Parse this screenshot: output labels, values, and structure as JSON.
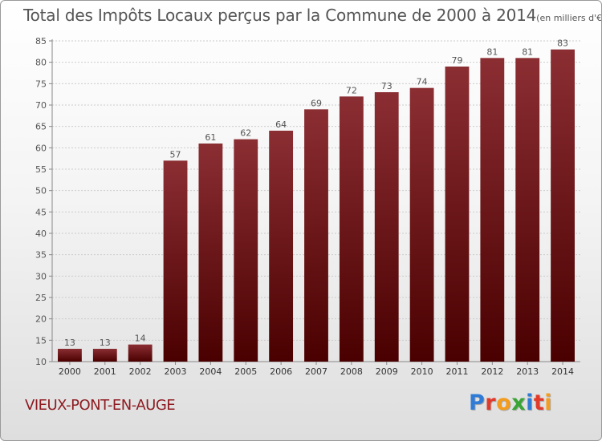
{
  "header": {
    "title": "Total des Impôts Locaux perçus par la Commune de 2000 à 2014",
    "unit": "(en milliers d'€)"
  },
  "footer": {
    "commune": "VIEUX-PONT-EN-AUGE"
  },
  "logo": {
    "text": "Proxiti",
    "letters": [
      "P",
      "r",
      "o",
      "x",
      "i",
      "t",
      "i"
    ],
    "letter_colors": [
      "#2f7bd6",
      "#e23a2a",
      "#f39c1e",
      "#3aa536",
      "#2f7bd6",
      "#e23a2a",
      "#f39c1e"
    ]
  },
  "colors": {
    "bar_top": "#8b2e33",
    "bar_bottom": "#4a0000",
    "grid": "#cccccc",
    "text": "#555555"
  },
  "chart_data": {
    "type": "bar",
    "title": "Total des Impôts Locaux perçus par la Commune de 2000 à 2014",
    "unit": "(en milliers d'€)",
    "xlabel": "",
    "ylabel": "",
    "categories": [
      "2000",
      "2001",
      "2002",
      "2003",
      "2004",
      "2005",
      "2006",
      "2007",
      "2008",
      "2009",
      "2010",
      "2011",
      "2012",
      "2013",
      "2014"
    ],
    "values": [
      13,
      13,
      14,
      57,
      61,
      62,
      64,
      69,
      72,
      73,
      74,
      79,
      81,
      81,
      83
    ],
    "ylim": [
      10,
      85
    ],
    "yticks": [
      10,
      15,
      20,
      25,
      30,
      35,
      40,
      45,
      50,
      55,
      60,
      65,
      70,
      75,
      80,
      85
    ],
    "grid": true,
    "data_labels": true
  }
}
